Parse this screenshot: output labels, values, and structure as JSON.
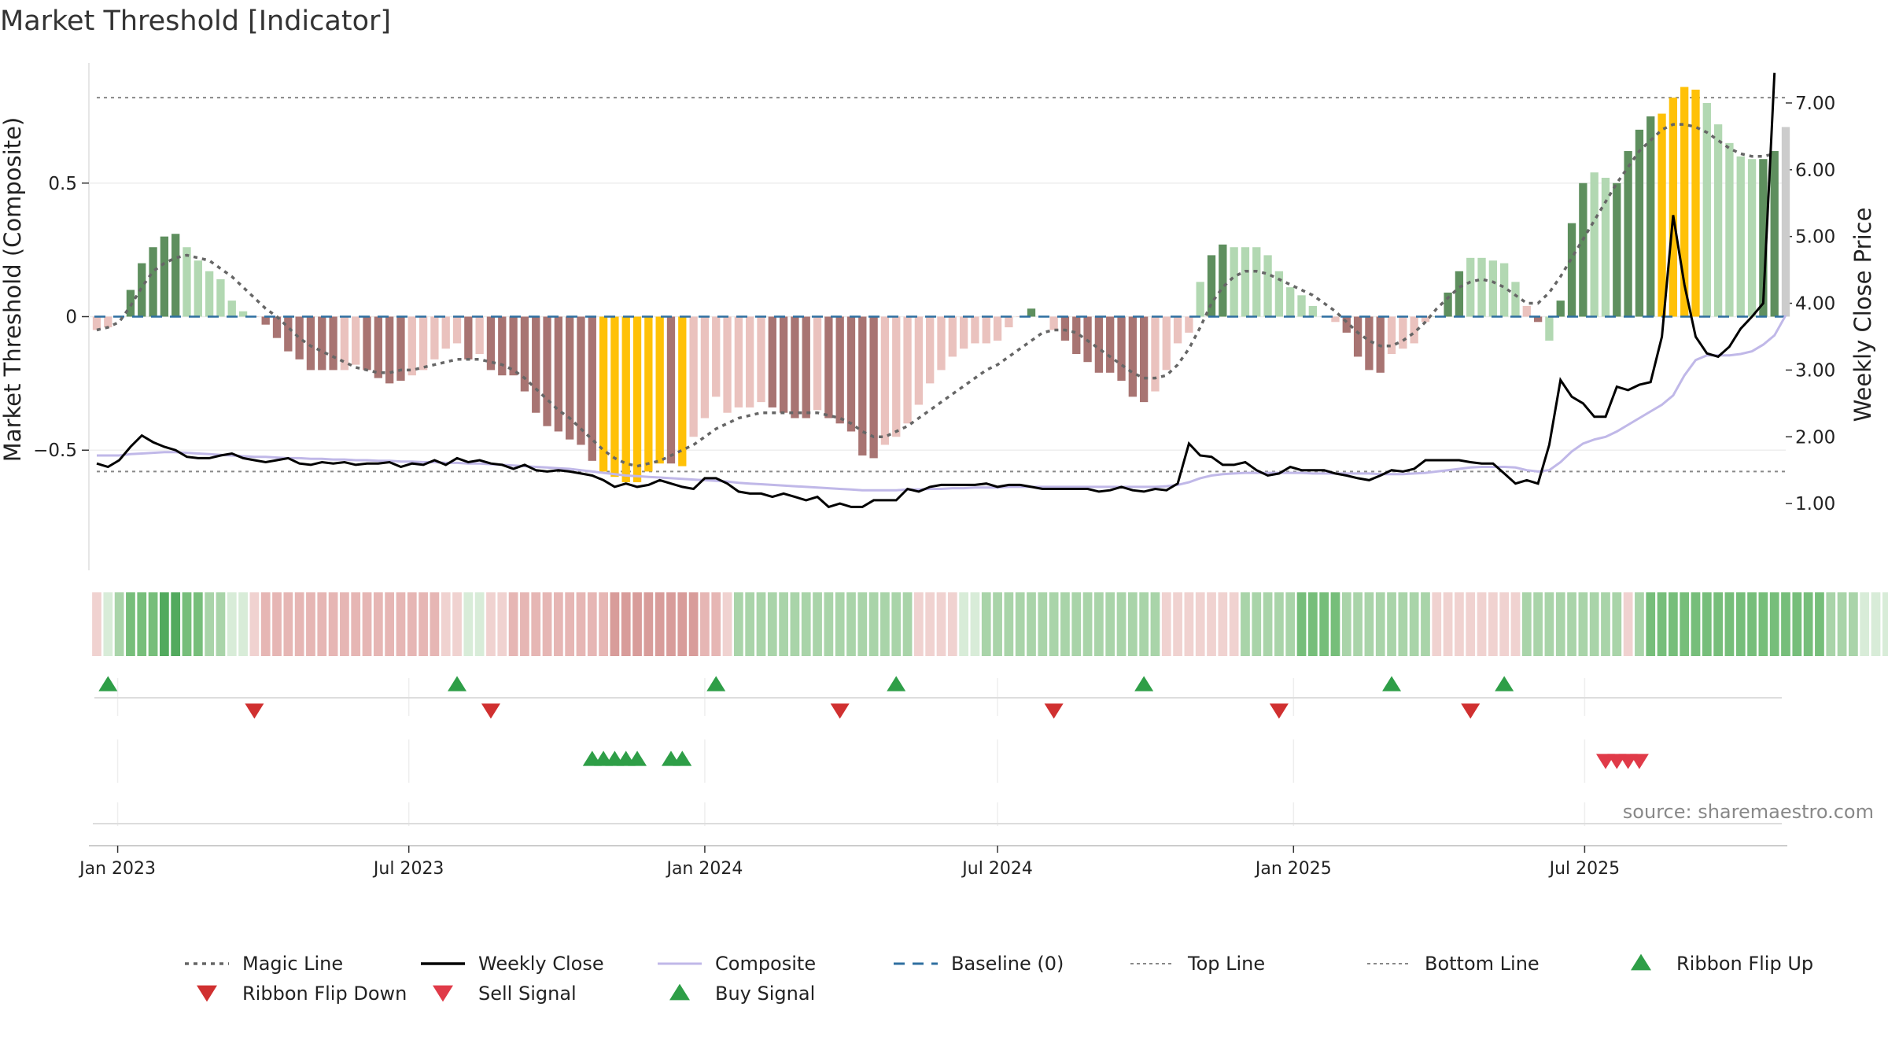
{
  "title": "Market Threshold [Indicator]",
  "source": "source: sharemaestro.com",
  "colors": {
    "bull_strong": "#5e8f5e",
    "bull_weak": "#b2d8b2",
    "bear_strong": "#a87472",
    "bear_weak": "#eac2be",
    "extreme": "#ffc107",
    "magic": "#666666",
    "close": "#000000",
    "composite": "#c0b8e8",
    "baseline": "#2f6fa0",
    "ribbon_flip_up": "#2e9e47",
    "ribbon_flip_down": "#d03030",
    "sell": "#e03a48",
    "buy": "#2e9e47"
  },
  "legend": [
    {
      "key": "magic",
      "label": "Magic Line",
      "style": "dotted-line"
    },
    {
      "key": "close",
      "label": "Weekly Close",
      "style": "solid-line"
    },
    {
      "key": "composite",
      "label": "Composite",
      "style": "thin-line"
    },
    {
      "key": "baseline",
      "label": "Baseline (0)",
      "style": "dashed-line"
    },
    {
      "key": "top",
      "label": "Top Line",
      "style": "dotted-gray"
    },
    {
      "key": "bottom",
      "label": "Bottom Line",
      "style": "dotted-gray"
    },
    {
      "key": "ribbon_flip_up",
      "label": "Ribbon Flip Up",
      "style": "triangle-up"
    },
    {
      "key": "ribbon_flip_down",
      "label": "Ribbon Flip Down",
      "style": "triangle-down"
    },
    {
      "key": "sell",
      "label": "Sell Signal",
      "style": "triangle-down"
    },
    {
      "key": "buy",
      "label": "Buy Signal",
      "style": "triangle-up"
    }
  ],
  "chart_data": {
    "type": "bar",
    "title": "Market Threshold [Indicator]",
    "ylabel": "Market Threshold (Composite)",
    "ylabel_right": "Weekly Close Price",
    "ylim": [
      -0.95,
      0.95
    ],
    "ylim_right": [
      0.0,
      7.6
    ],
    "yticks": [
      0.5,
      0,
      -0.5
    ],
    "ytick_labels": [
      "0.5",
      "0",
      "−0.5"
    ],
    "yticks_right": [
      1.0,
      2.0,
      3.0,
      4.0,
      5.0,
      6.0,
      7.0
    ],
    "ytick_labels_right": [
      "1.00",
      "2.00",
      "3.00",
      "4.00",
      "5.00",
      "6.00",
      "7.00"
    ],
    "x_start": "2022-12-19",
    "x_step_days": 7,
    "x_ticks": [
      {
        "date": "2023-01-01",
        "label": "Jan 2023"
      },
      {
        "date": "2023-07-01",
        "label": "Jul 2023"
      },
      {
        "date": "2024-01-01",
        "label": "Jan 2024"
      },
      {
        "date": "2024-07-01",
        "label": "Jul 2024"
      },
      {
        "date": "2025-01-01",
        "label": "Jan 2025"
      },
      {
        "date": "2025-07-01",
        "label": "Jul 2025"
      }
    ],
    "top_line": 0.82,
    "bottom_line": -0.58,
    "baseline": 0,
    "grid": true,
    "legend_position": "bottom",
    "composite_bars": [
      -0.05,
      -0.04,
      0.0,
      0.1,
      0.2,
      0.26,
      0.3,
      0.31,
      0.26,
      0.21,
      0.17,
      0.14,
      0.06,
      0.02,
      0.0,
      -0.03,
      -0.08,
      -0.13,
      -0.16,
      -0.2,
      -0.2,
      -0.2,
      -0.2,
      -0.18,
      -0.2,
      -0.23,
      -0.25,
      -0.24,
      -0.22,
      -0.2,
      -0.16,
      -0.12,
      -0.1,
      -0.16,
      -0.14,
      -0.2,
      -0.22,
      -0.22,
      -0.28,
      -0.36,
      -0.41,
      -0.43,
      -0.46,
      -0.48,
      -0.54,
      -0.58,
      -0.6,
      -0.62,
      -0.62,
      -0.58,
      -0.55,
      -0.55,
      -0.56,
      -0.45,
      -0.38,
      -0.3,
      -0.36,
      -0.34,
      -0.34,
      -0.32,
      -0.34,
      -0.36,
      -0.38,
      -0.38,
      -0.35,
      -0.38,
      -0.4,
      -0.43,
      -0.52,
      -0.53,
      -0.48,
      -0.45,
      -0.4,
      -0.33,
      -0.25,
      -0.2,
      -0.15,
      -0.12,
      -0.1,
      -0.1,
      -0.09,
      -0.04,
      0.0,
      0.03,
      0.0,
      -0.05,
      -0.09,
      -0.14,
      -0.17,
      -0.21,
      -0.21,
      -0.24,
      -0.3,
      -0.32,
      -0.28,
      -0.2,
      -0.1,
      -0.06,
      0.13,
      0.23,
      0.27,
      0.26,
      0.26,
      0.26,
      0.23,
      0.17,
      0.11,
      0.08,
      0.04,
      0.0,
      -0.02,
      -0.06,
      -0.15,
      -0.2,
      -0.21,
      -0.14,
      -0.12,
      -0.1,
      -0.02,
      0.0,
      0.09,
      0.17,
      0.22,
      0.22,
      0.21,
      0.2,
      0.13,
      0.04,
      -0.02,
      -0.09,
      0.06,
      0.35,
      0.5,
      0.54,
      0.52,
      0.5,
      0.62,
      0.7,
      0.75,
      0.76,
      0.82,
      0.86,
      0.85,
      0.8,
      0.72,
      0.65,
      0.6,
      0.59,
      0.59,
      0.62,
      0.71
    ],
    "bar_colors": [
      "bear_weak",
      "bear_weak",
      "bull_strong",
      "bull_strong",
      "bull_strong",
      "bull_strong",
      "bull_strong",
      "bull_strong",
      "bull_weak",
      "bull_weak",
      "bull_weak",
      "bull_weak",
      "bull_weak",
      "bull_weak",
      "bear_weak",
      "bear_strong",
      "bear_strong",
      "bear_strong",
      "bear_strong",
      "bear_strong",
      "bear_strong",
      "bear_strong",
      "bear_weak",
      "bear_weak",
      "bear_strong",
      "bear_strong",
      "bear_strong",
      "bear_strong",
      "bear_weak",
      "bear_weak",
      "bear_weak",
      "bear_weak",
      "bear_weak",
      "bear_strong",
      "bear_weak",
      "bear_strong",
      "bear_strong",
      "bear_strong",
      "bear_strong",
      "bear_strong",
      "bear_strong",
      "bear_strong",
      "bear_strong",
      "bear_strong",
      "bear_strong",
      "extreme",
      "extreme",
      "extreme",
      "extreme",
      "extreme",
      "extreme",
      "bear_strong",
      "extreme",
      "bear_weak",
      "bear_weak",
      "bear_weak",
      "bear_weak",
      "bear_weak",
      "bear_weak",
      "bear_weak",
      "bear_strong",
      "bear_strong",
      "bear_strong",
      "bear_strong",
      "bear_weak",
      "bear_strong",
      "bear_strong",
      "bear_strong",
      "bear_strong",
      "bear_strong",
      "bear_weak",
      "bear_weak",
      "bear_weak",
      "bear_weak",
      "bear_weak",
      "bear_weak",
      "bear_weak",
      "bear_weak",
      "bear_weak",
      "bear_weak",
      "bear_weak",
      "bear_weak",
      "bear_weak",
      "bull_strong",
      "bear_weak",
      "bear_weak",
      "bear_strong",
      "bear_strong",
      "bear_strong",
      "bear_strong",
      "bear_strong",
      "bear_strong",
      "bear_strong",
      "bear_strong",
      "bear_weak",
      "bear_weak",
      "bear_weak",
      "bear_weak",
      "bull_weak",
      "bull_strong",
      "bull_strong",
      "bull_weak",
      "bull_weak",
      "bull_weak",
      "bull_weak",
      "bull_weak",
      "bull_weak",
      "bull_weak",
      "bull_weak",
      "bear_weak",
      "bear_weak",
      "bear_strong",
      "bear_strong",
      "bear_strong",
      "bear_strong",
      "bear_weak",
      "bear_weak",
      "bear_weak",
      "bear_weak",
      "bull_weak",
      "bull_strong",
      "bull_strong",
      "bull_weak",
      "bull_weak",
      "bull_weak",
      "bull_weak",
      "bull_weak",
      "bear_weak",
      "bear_strong",
      "bull_weak",
      "bull_strong",
      "bull_strong",
      "bull_strong",
      "bull_weak",
      "bull_weak",
      "bull_strong",
      "bull_strong",
      "bull_strong",
      "bull_strong",
      "extreme",
      "extreme",
      "extreme",
      "extreme",
      "bull_weak",
      "bull_weak",
      "bull_weak",
      "bull_weak",
      "bull_weak",
      "bull_strong",
      "bull_strong"
    ],
    "magic_line": [
      -0.05,
      -0.04,
      -0.02,
      0.04,
      0.11,
      0.17,
      0.2,
      0.22,
      0.23,
      0.22,
      0.21,
      0.18,
      0.15,
      0.11,
      0.07,
      0.03,
      0.0,
      -0.04,
      -0.08,
      -0.11,
      -0.13,
      -0.15,
      -0.17,
      -0.19,
      -0.2,
      -0.21,
      -0.21,
      -0.2,
      -0.2,
      -0.19,
      -0.18,
      -0.17,
      -0.16,
      -0.16,
      -0.16,
      -0.17,
      -0.18,
      -0.2,
      -0.23,
      -0.27,
      -0.31,
      -0.35,
      -0.38,
      -0.42,
      -0.46,
      -0.5,
      -0.53,
      -0.55,
      -0.56,
      -0.55,
      -0.54,
      -0.52,
      -0.5,
      -0.48,
      -0.45,
      -0.42,
      -0.4,
      -0.38,
      -0.37,
      -0.36,
      -0.36,
      -0.36,
      -0.36,
      -0.36,
      -0.36,
      -0.37,
      -0.38,
      -0.4,
      -0.43,
      -0.45,
      -0.45,
      -0.43,
      -0.41,
      -0.38,
      -0.35,
      -0.32,
      -0.29,
      -0.26,
      -0.23,
      -0.2,
      -0.18,
      -0.15,
      -0.12,
      -0.09,
      -0.06,
      -0.05,
      -0.05,
      -0.06,
      -0.09,
      -0.12,
      -0.15,
      -0.18,
      -0.21,
      -0.23,
      -0.23,
      -0.22,
      -0.18,
      -0.12,
      -0.04,
      0.05,
      0.11,
      0.15,
      0.17,
      0.17,
      0.16,
      0.14,
      0.12,
      0.1,
      0.08,
      0.05,
      0.02,
      -0.02,
      -0.06,
      -0.09,
      -0.11,
      -0.11,
      -0.09,
      -0.06,
      -0.02,
      0.03,
      0.07,
      0.11,
      0.13,
      0.14,
      0.13,
      0.11,
      0.08,
      0.05,
      0.05,
      0.09,
      0.15,
      0.22,
      0.29,
      0.36,
      0.43,
      0.5,
      0.56,
      0.62,
      0.66,
      0.7,
      0.72,
      0.72,
      0.71,
      0.69,
      0.66,
      0.63,
      0.61,
      0.6,
      0.6,
      0.61
    ],
    "weekly_close": [
      1.6,
      1.55,
      1.65,
      1.85,
      2.02,
      1.92,
      1.85,
      1.8,
      1.7,
      1.68,
      1.68,
      1.72,
      1.75,
      1.68,
      1.65,
      1.62,
      1.65,
      1.68,
      1.6,
      1.58,
      1.62,
      1.6,
      1.62,
      1.58,
      1.6,
      1.6,
      1.62,
      1.55,
      1.6,
      1.58,
      1.65,
      1.58,
      1.68,
      1.62,
      1.65,
      1.6,
      1.58,
      1.52,
      1.58,
      1.5,
      1.48,
      1.5,
      1.48,
      1.45,
      1.42,
      1.35,
      1.25,
      1.3,
      1.25,
      1.28,
      1.35,
      1.3,
      1.25,
      1.22,
      1.38,
      1.38,
      1.3,
      1.18,
      1.15,
      1.15,
      1.1,
      1.15,
      1.1,
      1.05,
      1.1,
      0.95,
      1.0,
      0.95,
      0.95,
      1.05,
      1.05,
      1.05,
      1.22,
      1.18,
      1.25,
      1.28,
      1.28,
      1.28,
      1.28,
      1.3,
      1.25,
      1.28,
      1.28,
      1.25,
      1.22,
      1.22,
      1.22,
      1.22,
      1.22,
      1.18,
      1.2,
      1.25,
      1.2,
      1.18,
      1.22,
      1.2,
      1.3,
      1.9,
      1.72,
      1.7,
      1.58,
      1.58,
      1.62,
      1.5,
      1.42,
      1.45,
      1.55,
      1.5,
      1.5,
      1.5,
      1.45,
      1.42,
      1.38,
      1.35,
      1.42,
      1.5,
      1.48,
      1.52,
      1.65,
      1.65,
      1.65,
      1.65,
      1.62,
      1.6,
      1.6,
      1.45,
      1.3,
      1.35,
      1.3,
      1.88,
      2.85,
      2.6,
      2.5,
      2.3,
      2.3,
      2.75,
      2.7,
      2.78,
      2.82,
      3.5,
      5.32,
      4.28,
      3.5,
      3.25,
      3.2,
      3.35,
      3.62,
      3.8,
      4.0,
      7.45
    ],
    "composite_line": [
      1.72,
      1.72,
      1.72,
      1.74,
      1.75,
      1.76,
      1.77,
      1.77,
      1.76,
      1.75,
      1.74,
      1.73,
      1.72,
      1.71,
      1.7,
      1.7,
      1.69,
      1.68,
      1.68,
      1.67,
      1.67,
      1.66,
      1.66,
      1.65,
      1.65,
      1.64,
      1.64,
      1.63,
      1.63,
      1.62,
      1.62,
      1.61,
      1.61,
      1.6,
      1.6,
      1.59,
      1.58,
      1.57,
      1.56,
      1.55,
      1.54,
      1.53,
      1.52,
      1.5,
      1.48,
      1.46,
      1.44,
      1.42,
      1.41,
      1.4,
      1.39,
      1.38,
      1.37,
      1.36,
      1.35,
      1.34,
      1.33,
      1.31,
      1.3,
      1.29,
      1.28,
      1.27,
      1.26,
      1.25,
      1.24,
      1.23,
      1.22,
      1.21,
      1.2,
      1.2,
      1.2,
      1.2,
      1.21,
      1.21,
      1.22,
      1.22,
      1.23,
      1.23,
      1.24,
      1.24,
      1.24,
      1.25,
      1.25,
      1.25,
      1.25,
      1.25,
      1.25,
      1.25,
      1.25,
      1.25,
      1.25,
      1.25,
      1.25,
      1.25,
      1.25,
      1.26,
      1.28,
      1.32,
      1.38,
      1.42,
      1.44,
      1.45,
      1.46,
      1.46,
      1.46,
      1.46,
      1.46,
      1.46,
      1.45,
      1.45,
      1.45,
      1.45,
      1.45,
      1.45,
      1.44,
      1.44,
      1.44,
      1.45,
      1.46,
      1.48,
      1.5,
      1.52,
      1.54,
      1.55,
      1.55,
      1.55,
      1.54,
      1.5,
      1.48,
      1.5,
      1.62,
      1.78,
      1.9,
      1.96,
      2.0,
      2.08,
      2.18,
      2.28,
      2.38,
      2.48,
      2.62,
      2.92,
      3.15,
      3.22,
      3.22,
      3.22,
      3.24,
      3.28,
      3.38,
      3.52,
      3.82
    ],
    "ribbon_strength": [
      -1,
      1,
      2,
      3,
      3,
      3,
      4,
      4,
      3,
      3,
      2,
      2,
      1,
      1,
      -1,
      -2,
      -2,
      -2,
      -2,
      -2,
      -2,
      -2,
      -2,
      -2,
      -2,
      -2,
      -2,
      -2,
      -2,
      -2,
      -2,
      -1,
      -1,
      1,
      1,
      -1,
      -1,
      -2,
      -2,
      -2,
      -2,
      -2,
      -2,
      -2,
      -2,
      -2,
      -3,
      -3,
      -3,
      -3,
      -3,
      -3,
      -3,
      -3,
      -2,
      -2,
      -1,
      2,
      2,
      2,
      2,
      2,
      2,
      2,
      2,
      2,
      2,
      2,
      2,
      2,
      2,
      2,
      2,
      -1,
      -1,
      -1,
      -1,
      1,
      1,
      2,
      2,
      2,
      2,
      2,
      2,
      2,
      2,
      2,
      2,
      2,
      2,
      2,
      2,
      2,
      2,
      -1,
      -1,
      -1,
      -1,
      -1,
      -1,
      -1,
      2,
      2,
      2,
      2,
      2,
      3,
      3,
      3,
      3,
      2,
      2,
      2,
      2,
      2,
      2,
      2,
      2,
      -1,
      -1,
      -1,
      -1,
      -1,
      -1,
      -1,
      -1,
      2,
      2,
      2,
      2,
      2,
      2,
      2,
      2,
      2,
      -1,
      2,
      3,
      3,
      3,
      3,
      3,
      3,
      3,
      3,
      3,
      3,
      3,
      3,
      3,
      3,
      3,
      3,
      2,
      2,
      2,
      1,
      1,
      1,
      1
    ],
    "ribbon_flip_up": [
      1,
      32,
      55,
      71,
      93,
      115,
      125
    ],
    "ribbon_flip_down": [
      14,
      35,
      66,
      85,
      105,
      122
    ],
    "buy_signal": [
      44,
      45,
      46,
      47,
      48,
      51,
      52
    ],
    "sell_signal": [
      134,
      135,
      136,
      137
    ]
  }
}
